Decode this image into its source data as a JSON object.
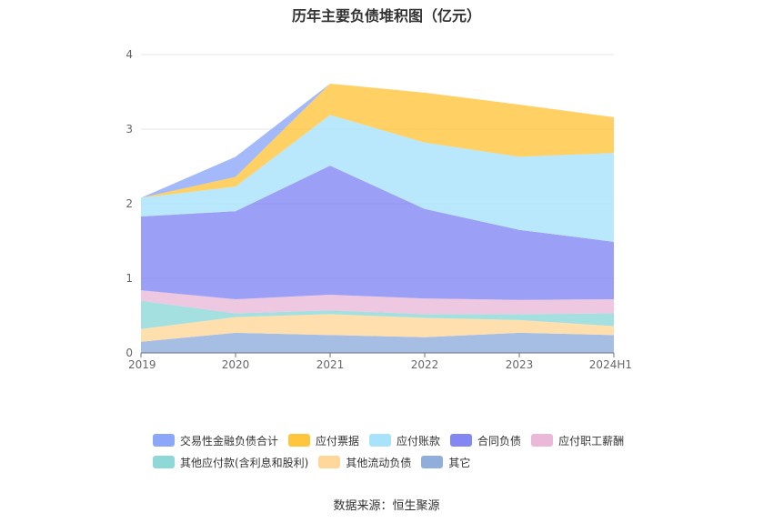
{
  "chart_data": {
    "type": "area",
    "stacked": true,
    "title": "历年主要负债堆积图（亿元）",
    "categories": [
      "2019",
      "2020",
      "2021",
      "2022",
      "2023",
      "2024H1"
    ],
    "ylim": [
      0,
      4
    ],
    "yticks": [
      0,
      1,
      2,
      3,
      4
    ],
    "grid": true,
    "legend_position": "bottom",
    "series": [
      {
        "name": "其它",
        "color": "#90aedc",
        "values": [
          0.15,
          0.27,
          0.24,
          0.21,
          0.27,
          0.24
        ]
      },
      {
        "name": "其他流动负债",
        "color": "#ffd79a",
        "values": [
          0.17,
          0.21,
          0.28,
          0.26,
          0.17,
          0.12
        ]
      },
      {
        "name": "其他应付款(含利息和股利)",
        "color": "#8ed8d8",
        "values": [
          0.38,
          0.05,
          0.05,
          0.05,
          0.08,
          0.17
        ]
      },
      {
        "name": "应付职工薪酬",
        "color": "#eab9d9",
        "values": [
          0.14,
          0.19,
          0.21,
          0.21,
          0.19,
          0.19
        ]
      },
      {
        "name": "合同负债",
        "color": "#8287f2",
        "values": [
          0.99,
          1.18,
          1.73,
          1.2,
          0.94,
          0.77
        ]
      },
      {
        "name": "应付账款",
        "color": "#a8e2fb",
        "values": [
          0.25,
          0.33,
          0.68,
          0.89,
          0.98,
          1.19
        ]
      },
      {
        "name": "应付票据",
        "color": "#ffc53d",
        "values": [
          0.0,
          0.13,
          0.42,
          0.67,
          0.7,
          0.48
        ]
      },
      {
        "name": "交易性金融负债合计",
        "color": "#8ca7f7",
        "values": [
          0.0,
          0.27,
          0.0,
          0.0,
          0.0,
          0.0
        ]
      }
    ]
  },
  "legend": {
    "row1": [
      {
        "label": "交易性金融负债合计",
        "color": "#8ca7f7"
      },
      {
        "label": "应付票据",
        "color": "#ffc53d"
      },
      {
        "label": "应付账款",
        "color": "#a8e2fb"
      },
      {
        "label": "合同负债",
        "color": "#8287f2"
      },
      {
        "label": "应付职工薪酬",
        "color": "#eab9d9"
      }
    ],
    "row2": [
      {
        "label": "其他应付款(含利息和股利)",
        "color": "#8ed8d8"
      },
      {
        "label": "其他流动负债",
        "color": "#ffd79a"
      },
      {
        "label": "其它",
        "color": "#90aedc"
      }
    ]
  },
  "source": "数据来源：恒生聚源"
}
